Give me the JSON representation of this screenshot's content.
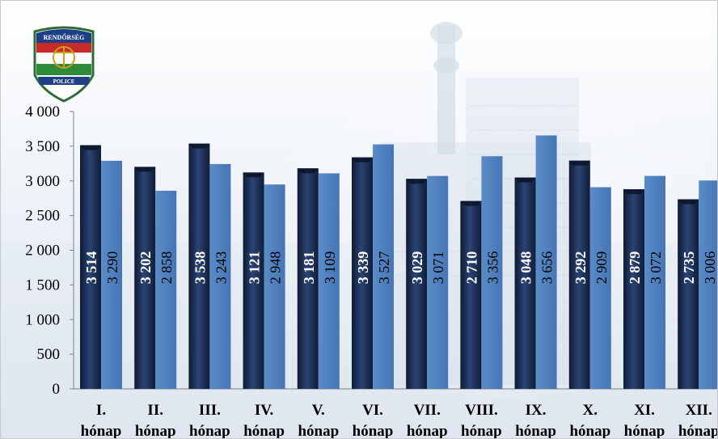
{
  "logo": {
    "top_text": "RENDŐRSÉG",
    "bottom_text": "POLICE"
  },
  "colors": {
    "series1": "#1e3157",
    "series2": "#4f81bd",
    "axis": "#808080"
  },
  "chart_data": {
    "type": "bar",
    "categories": [
      [
        "I.",
        "hónap"
      ],
      [
        "II.",
        "hónap"
      ],
      [
        "III.",
        "hónap"
      ],
      [
        "IV.",
        "hónap"
      ],
      [
        "V.",
        "hónap"
      ],
      [
        "VI.",
        "hónap"
      ],
      [
        "VII.",
        "hónap"
      ],
      [
        "VIII.",
        "hónap"
      ],
      [
        "IX.",
        "hónap"
      ],
      [
        "X.",
        "hónap"
      ],
      [
        "XI.",
        "hónap"
      ],
      [
        "XII.",
        "hónap"
      ]
    ],
    "series": [
      {
        "values": [
          3514,
          3202,
          3538,
          3121,
          3181,
          3339,
          3029,
          2710,
          3048,
          3292,
          2879,
          2735
        ],
        "labels": [
          "3 514",
          "3 202",
          "3 538",
          "3 121",
          "3 181",
          "3 339",
          "3 029",
          "2 710",
          "3 048",
          "3 292",
          "2 879",
          "2 735"
        ]
      },
      {
        "values": [
          3290,
          2858,
          3243,
          2948,
          3109,
          3527,
          3071,
          3356,
          3656,
          2909,
          3072,
          3006
        ],
        "labels": [
          "3 290",
          "2 858",
          "3 243",
          "2 948",
          "3 109",
          "3 527",
          "3 071",
          "3 356",
          "3 656",
          "2 909",
          "3 072",
          "3 006"
        ]
      }
    ],
    "yticks": [
      "0",
      "500",
      "1 000",
      "1 500",
      "2 000",
      "2 500",
      "3 000",
      "3 500",
      "4 000"
    ],
    "ylim": [
      0,
      4000
    ],
    "title": "",
    "xlabel": "",
    "ylabel": "",
    "grid": false,
    "legend": "none"
  }
}
